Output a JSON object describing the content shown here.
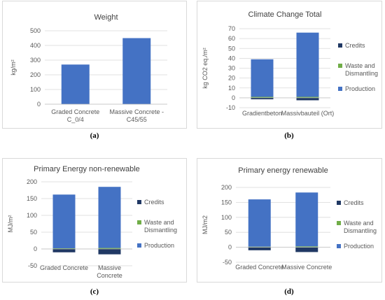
{
  "colors": {
    "production": "#4472c4",
    "waste": "#70ad47",
    "credits": "#203864",
    "grid": "#d9d9d9",
    "axis_text": "#595959",
    "title_text": "#404040"
  },
  "panel_labels": {
    "a": "(a)",
    "b": "(b)",
    "c": "(c)",
    "d": "(d)"
  },
  "chart_data": [
    {
      "id": "a",
      "type": "bar",
      "title": "Weight",
      "ylabel": "kg/m²",
      "ylim": [
        0,
        500
      ],
      "yticks": [
        "0",
        "100",
        "200",
        "300",
        "400",
        "500"
      ],
      "categories": [
        [
          "Graded Concrete",
          "C_0/4"
        ],
        [
          "Massive Concrete -",
          "C45/55"
        ]
      ],
      "values": [
        270,
        450
      ],
      "grid": true
    },
    {
      "id": "b",
      "type": "bar",
      "stacked": true,
      "title": "Climate Change Total",
      "ylabel": "kg CO2 eq./m²",
      "ylim": [
        -10,
        70
      ],
      "yticks": [
        "-10",
        "0",
        "10",
        "20",
        "30",
        "40",
        "50",
        "60",
        "70"
      ],
      "categories": [
        [
          "Gradientbeton"
        ],
        [
          "Massivbauteil (Ort)"
        ]
      ],
      "series": [
        {
          "name": "Credits",
          "values": [
            -1.5,
            -2.5
          ]
        },
        {
          "name": "Waste and Dismantling",
          "values": [
            1,
            1
          ]
        },
        {
          "name": "Production",
          "values": [
            38,
            65
          ]
        }
      ],
      "legend_position": "right",
      "grid": true
    },
    {
      "id": "c",
      "type": "bar",
      "stacked": true,
      "title": "Primary Energy non-renewable",
      "ylabel": "MJ/m²",
      "ylim": [
        -50,
        200
      ],
      "yticks": [
        "-50",
        "0",
        "50",
        "100",
        "150",
        "200"
      ],
      "categories": [
        [
          "Graded Concrete"
        ],
        [
          "Massive",
          "Concrete"
        ]
      ],
      "series": [
        {
          "name": "Credits",
          "values": [
            -10,
            -16
          ]
        },
        {
          "name": "Waste and Dismantling",
          "values": [
            2,
            3
          ]
        },
        {
          "name": "Production",
          "values": [
            160,
            182
          ]
        }
      ],
      "legend_position": "right",
      "grid": true
    },
    {
      "id": "d",
      "type": "bar",
      "stacked": true,
      "title": "Primary energy renewable",
      "ylabel": "MJ/m2",
      "ylim": [
        -50,
        200
      ],
      "yticks": [
        "-50",
        "0",
        "50",
        "100",
        "150",
        "200"
      ],
      "categories": [
        [
          "Graded Concrete"
        ],
        [
          "Massive Concrete"
        ]
      ],
      "series": [
        {
          "name": "Credits",
          "values": [
            -10,
            -16
          ]
        },
        {
          "name": "Waste and Dismantling",
          "values": [
            2,
            3
          ]
        },
        {
          "name": "Production",
          "values": [
            158,
            180
          ]
        }
      ],
      "legend_position": "right",
      "grid": true
    }
  ]
}
